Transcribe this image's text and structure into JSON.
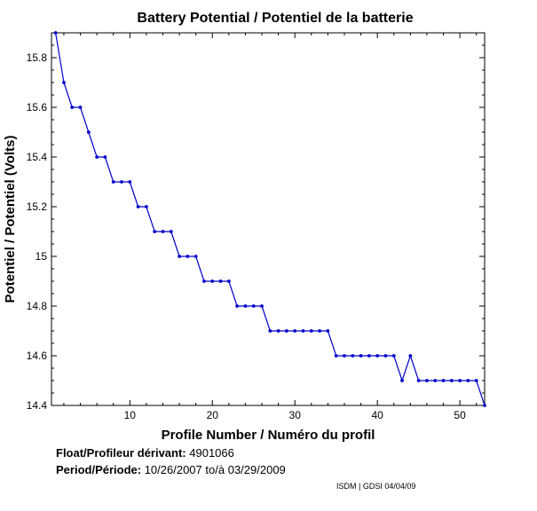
{
  "chart_data": {
    "type": "line",
    "title": "Battery Potential / Potentiel de la batterie",
    "xlabel": "Profile Number / Numéro du profil",
    "ylabel": "Potentiel / Potentiel (Volts)",
    "xlim": [
      0.5,
      53
    ],
    "ylim": [
      14.4,
      15.9
    ],
    "xticks": [
      10,
      20,
      30,
      40,
      50
    ],
    "yticks": [
      14.4,
      14.6,
      14.8,
      15,
      15.2,
      15.4,
      15.6,
      15.8
    ],
    "ytick_labels": [
      "14.4",
      "14.6",
      "14.8",
      "15",
      "15.2",
      "15.4",
      "15.6",
      "15.8"
    ],
    "grid": false,
    "series": [
      {
        "color": "#0000cc",
        "x": [
          1,
          2,
          3,
          4,
          5,
          6,
          7,
          8,
          9,
          10,
          11,
          12,
          13,
          14,
          15,
          16,
          17,
          18,
          19,
          20,
          21,
          22,
          23,
          24,
          25,
          26,
          27,
          28,
          29,
          30,
          31,
          32,
          33,
          34,
          35,
          36,
          37,
          38,
          39,
          40,
          41,
          42,
          43,
          44,
          45,
          46,
          47,
          48,
          49,
          50,
          51,
          52,
          53
        ],
        "y": [
          15.9,
          15.7,
          15.6,
          15.6,
          15.5,
          15.4,
          15.4,
          15.3,
          15.3,
          15.3,
          15.2,
          15.2,
          15.1,
          15.1,
          15.1,
          15.0,
          15.0,
          15.0,
          14.9,
          14.9,
          14.9,
          14.9,
          14.8,
          14.8,
          14.8,
          14.8,
          14.7,
          14.7,
          14.7,
          14.7,
          14.7,
          14.7,
          14.7,
          14.7,
          14.6,
          14.6,
          14.6,
          14.6,
          14.6,
          14.6,
          14.6,
          14.6,
          14.5,
          14.6,
          14.5,
          14.5,
          14.5,
          14.5,
          14.5,
          14.5,
          14.5,
          14.5,
          14.4
        ]
      }
    ]
  },
  "info": {
    "float_label": "Float/Profileur dérivant:",
    "float_value": "4901066",
    "period_label": "Period/Période:",
    "period_start": "10/26/2007",
    "period_sep": "to/à",
    "period_end": "03/29/2009"
  },
  "credit": "ISDM | GDSI 04/04/09"
}
